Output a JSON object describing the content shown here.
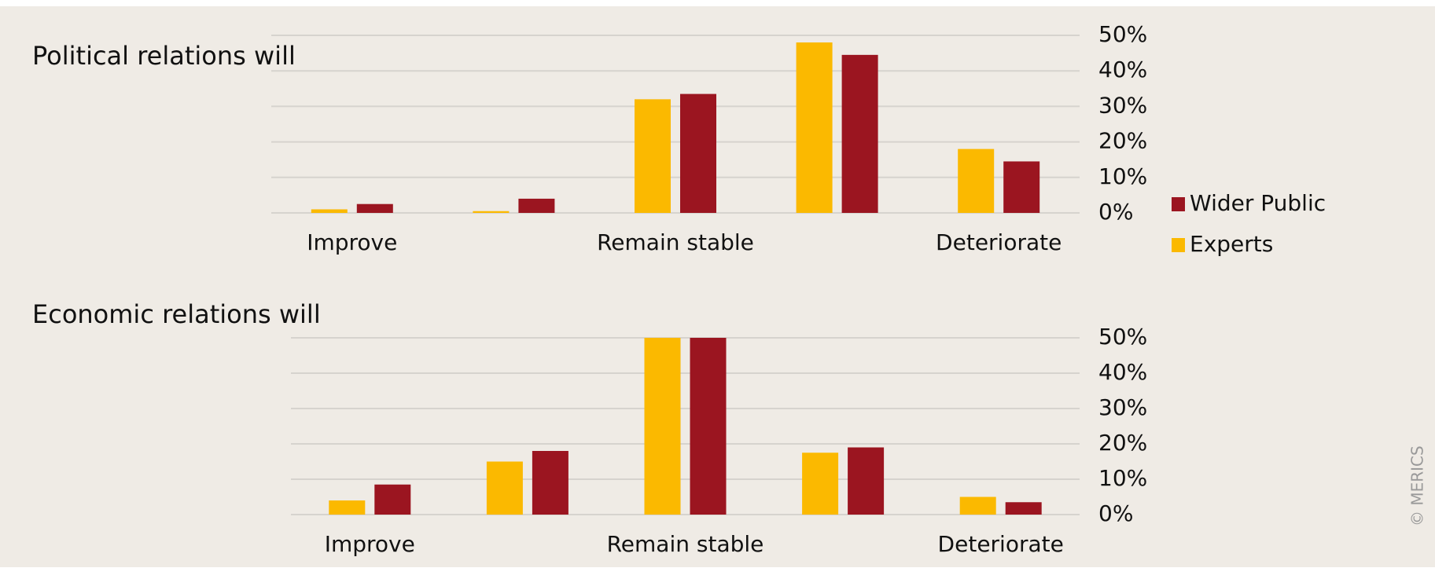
{
  "chart_data": [
    {
      "type": "bar",
      "title": "Political relations will",
      "categories": [
        "Improve",
        null,
        "Remain stable",
        null,
        "Deteriorate"
      ],
      "series": [
        {
          "name": "Experts",
          "color": "#fbb900",
          "values": [
            1,
            0.5,
            32,
            48,
            18
          ]
        },
        {
          "name": "Wider Public",
          "color": "#9b1520",
          "values": [
            2.5,
            4,
            33.5,
            44.5,
            14.5
          ]
        }
      ],
      "ylim": [
        0,
        50
      ],
      "yticks": [
        {
          "value": 0,
          "label": "0%"
        },
        {
          "value": 10,
          "label": "10%"
        },
        {
          "value": 20,
          "label": "20%"
        },
        {
          "value": 30,
          "label": "30%"
        },
        {
          "value": 40,
          "label": "40%"
        },
        {
          "value": 50,
          "label": "50%"
        }
      ],
      "grid": true
    },
    {
      "type": "bar",
      "title": "Economic relations will",
      "categories": [
        "Improve",
        null,
        "Remain stable",
        null,
        "Deteriorate"
      ],
      "series": [
        {
          "color": "#fbb900",
          "values": [
            4,
            15,
            50,
            17.5,
            5
          ]
        },
        {
          "color": "#9b1520",
          "values": [
            8.5,
            18,
            50,
            19,
            3.5
          ]
        }
      ],
      "ylim": [
        0,
        50
      ],
      "yticks": [
        {
          "value": 0,
          "label": "0%"
        },
        {
          "value": 10,
          "label": "10%"
        },
        {
          "value": 20,
          "label": "20%"
        },
        {
          "value": 30,
          "label": "30%"
        },
        {
          "value": 40,
          "label": "40%"
        },
        {
          "value": 50,
          "label": "50%"
        }
      ],
      "grid": true
    }
  ],
  "credit": "© MERICS"
}
